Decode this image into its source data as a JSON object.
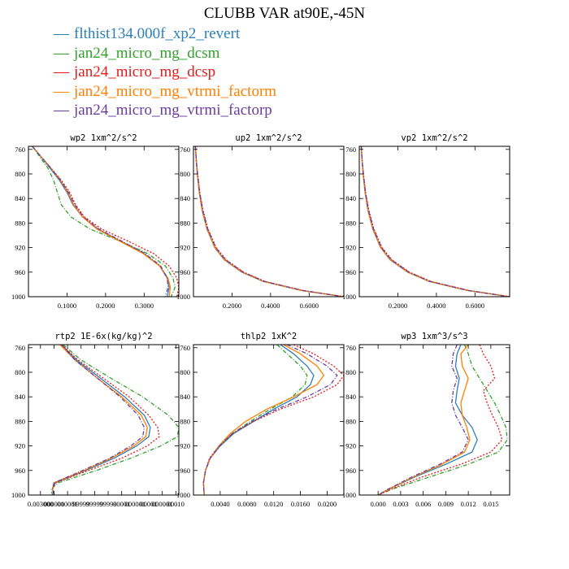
{
  "title": "CLUBB VAR at90E,-45N",
  "legend": [
    {
      "label": "flthist134.000f_xp2_revert",
      "color": "#2c7fb8",
      "dash": "solid"
    },
    {
      "label": "jan24_micro_mg_dcsm",
      "color": "#33a02c",
      "dash": "dashdot"
    },
    {
      "label": "jan24_micro_mg_dcsp",
      "color": "#e31a1c",
      "dash": "dotted"
    },
    {
      "label": "jan24_micro_mg_vtrmi_factorm",
      "color": "#ff7f00",
      "dash": "solid"
    },
    {
      "label": "jan24_micro_mg_vtrmi_factorp",
      "color": "#6a3d9a",
      "dash": "dashdot"
    }
  ],
  "chart_data": [
    {
      "type": "line",
      "title": "wp2   1xm^2/s^2",
      "xlim": [
        0.0,
        0.39
      ],
      "ylim": [
        1000,
        755
      ],
      "xticks": [
        0.1,
        0.2,
        0.3
      ],
      "xtick_labels": [
        "0.1000",
        "0.2000",
        "0.3000"
      ],
      "yticks": [
        760,
        800,
        840,
        880,
        920,
        960,
        1000
      ],
      "ytick_labels": [
        "760",
        "800",
        "840",
        "880",
        "920",
        "960",
        "1000"
      ],
      "y": [
        755,
        770,
        790,
        810,
        830,
        850,
        870,
        890,
        910,
        930,
        950,
        970,
        985,
        1000
      ],
      "series": [
        {
          "name": "flthist134.000f_xp2_revert",
          "x": [
            0.01,
            0.03,
            0.055,
            0.08,
            0.1,
            0.115,
            0.14,
            0.18,
            0.24,
            0.3,
            0.34,
            0.36,
            0.365,
            0.36
          ]
        },
        {
          "name": "jan24_micro_mg_dcsm",
          "x": [
            0.01,
            0.027,
            0.05,
            0.065,
            0.075,
            0.085,
            0.11,
            0.16,
            0.24,
            0.31,
            0.355,
            0.375,
            0.38,
            0.37
          ]
        },
        {
          "name": "jan24_micro_mg_dcsp",
          "x": [
            0.01,
            0.03,
            0.058,
            0.085,
            0.107,
            0.122,
            0.145,
            0.19,
            0.26,
            0.325,
            0.365,
            0.385,
            0.39,
            0.385
          ]
        },
        {
          "name": "jan24_micro_mg_vtrmi_factorm",
          "x": [
            0.01,
            0.03,
            0.057,
            0.082,
            0.102,
            0.117,
            0.14,
            0.178,
            0.238,
            0.298,
            0.34,
            0.362,
            0.368,
            0.365
          ]
        },
        {
          "name": "jan24_micro_mg_vtrmi_factorp",
          "x": [
            0.01,
            0.03,
            0.057,
            0.083,
            0.104,
            0.12,
            0.143,
            0.183,
            0.243,
            0.303,
            0.343,
            0.36,
            0.362,
            0.355
          ]
        }
      ]
    },
    {
      "type": "line",
      "title": "up2   1xm^2/s^2",
      "xlim": [
        0.0,
        0.78
      ],
      "ylim": [
        1000,
        755
      ],
      "xticks": [
        0.2,
        0.4,
        0.6
      ],
      "xtick_labels": [
        "0.2000",
        "0.4000",
        "0.6000"
      ],
      "yticks": [
        760,
        800,
        840,
        880,
        920,
        960,
        1000
      ],
      "ytick_labels": [
        "760",
        "800",
        "840",
        "880",
        "920",
        "960",
        "1000"
      ],
      "y": [
        755,
        780,
        800,
        830,
        860,
        890,
        920,
        940,
        960,
        975,
        990,
        1000
      ],
      "series": [
        {
          "name": "flthist134.000f_xp2_revert",
          "x": [
            0.01,
            0.015,
            0.02,
            0.03,
            0.045,
            0.07,
            0.11,
            0.16,
            0.25,
            0.36,
            0.56,
            0.78
          ]
        },
        {
          "name": "jan24_micro_mg_dcsm",
          "x": [
            0.01,
            0.015,
            0.021,
            0.031,
            0.047,
            0.073,
            0.113,
            0.165,
            0.255,
            0.365,
            0.565,
            0.78
          ]
        },
        {
          "name": "jan24_micro_mg_dcsp",
          "x": [
            0.01,
            0.015,
            0.022,
            0.033,
            0.05,
            0.076,
            0.118,
            0.17,
            0.26,
            0.37,
            0.57,
            0.78
          ]
        },
        {
          "name": "jan24_micro_mg_vtrmi_factorm",
          "x": [
            0.01,
            0.015,
            0.02,
            0.03,
            0.046,
            0.071,
            0.111,
            0.162,
            0.252,
            0.362,
            0.562,
            0.78
          ]
        },
        {
          "name": "jan24_micro_mg_vtrmi_factorp",
          "x": [
            0.01,
            0.015,
            0.021,
            0.032,
            0.048,
            0.074,
            0.115,
            0.167,
            0.257,
            0.367,
            0.567,
            0.78
          ]
        }
      ]
    },
    {
      "type": "line",
      "title": "vp2   1xm^2/s^2",
      "xlim": [
        0.0,
        0.78
      ],
      "ylim": [
        1000,
        755
      ],
      "xticks": [
        0.2,
        0.4,
        0.6
      ],
      "xtick_labels": [
        "0.2000",
        "0.4000",
        "0.6000"
      ],
      "yticks": [
        760,
        800,
        840,
        880,
        920,
        960,
        1000
      ],
      "ytick_labels": [
        "760",
        "800",
        "840",
        "880",
        "920",
        "960",
        "1000"
      ],
      "y": [
        755,
        780,
        800,
        830,
        860,
        890,
        920,
        940,
        960,
        975,
        990,
        1000
      ],
      "series": [
        {
          "name": "flthist134.000f_xp2_revert",
          "x": [
            0.01,
            0.015,
            0.02,
            0.03,
            0.045,
            0.07,
            0.11,
            0.16,
            0.25,
            0.36,
            0.56,
            0.78
          ]
        },
        {
          "name": "jan24_micro_mg_dcsm",
          "x": [
            0.01,
            0.015,
            0.021,
            0.031,
            0.047,
            0.073,
            0.113,
            0.165,
            0.255,
            0.365,
            0.565,
            0.78
          ]
        },
        {
          "name": "jan24_micro_mg_dcsp",
          "x": [
            0.01,
            0.015,
            0.022,
            0.033,
            0.05,
            0.076,
            0.118,
            0.17,
            0.26,
            0.37,
            0.57,
            0.78
          ]
        },
        {
          "name": "jan24_micro_mg_vtrmi_factorm",
          "x": [
            0.01,
            0.015,
            0.02,
            0.03,
            0.046,
            0.071,
            0.111,
            0.162,
            0.252,
            0.362,
            0.562,
            0.78
          ]
        },
        {
          "name": "jan24_micro_mg_vtrmi_factorp",
          "x": [
            0.01,
            0.015,
            0.021,
            0.032,
            0.048,
            0.074,
            0.115,
            0.167,
            0.257,
            0.367,
            0.567,
            0.78
          ]
        }
      ]
    },
    {
      "type": "line",
      "title": "rtp2   1E-6x(kg/kg)^2",
      "xlim": [
        0.0,
        1.0
      ],
      "ylim": [
        1000,
        755
      ],
      "xticks": [
        0.08,
        0.17,
        0.26,
        0.35,
        0.44,
        0.53,
        0.62,
        0.71,
        0.8,
        0.89,
        0.98
      ],
      "xtick_labels": [
        "0.003000",
        "000001",
        "000001",
        "99999",
        "99999",
        "99999",
        "00001",
        "000001",
        "00001",
        "000001",
        "00010"
      ],
      "yticks": [
        760,
        800,
        840,
        880,
        920,
        960,
        1000
      ],
      "ytick_labels": [
        "760",
        "800",
        "840",
        "880",
        "920",
        "960",
        "1000"
      ],
      "y": [
        755,
        780,
        810,
        840,
        870,
        890,
        905,
        920,
        940,
        960,
        980,
        990,
        1000
      ],
      "series": [
        {
          "name": "flthist134.000f_xp2_revert",
          "x": [
            0.22,
            0.32,
            0.48,
            0.64,
            0.77,
            0.81,
            0.8,
            0.72,
            0.57,
            0.38,
            0.18,
            0.16,
            0.17
          ]
        },
        {
          "name": "jan24_micro_mg_dcsm",
          "x": [
            0.23,
            0.35,
            0.55,
            0.76,
            0.93,
            1.0,
            0.99,
            0.88,
            0.68,
            0.45,
            0.2,
            0.15,
            0.16
          ]
        },
        {
          "name": "jan24_micro_mg_dcsp",
          "x": [
            0.22,
            0.33,
            0.5,
            0.67,
            0.8,
            0.86,
            0.87,
            0.79,
            0.62,
            0.4,
            0.18,
            0.16,
            0.17
          ]
        },
        {
          "name": "jan24_micro_mg_vtrmi_factorm",
          "x": [
            0.21,
            0.31,
            0.46,
            0.62,
            0.75,
            0.79,
            0.78,
            0.7,
            0.55,
            0.37,
            0.17,
            0.16,
            0.17
          ]
        },
        {
          "name": "jan24_micro_mg_vtrmi_factorp",
          "x": [
            0.22,
            0.31,
            0.46,
            0.61,
            0.73,
            0.77,
            0.76,
            0.68,
            0.54,
            0.36,
            0.17,
            0.16,
            0.17
          ]
        }
      ]
    },
    {
      "type": "line",
      "title": "thlp2   1xK^2",
      "xlim": [
        0.0,
        0.0225
      ],
      "ylim": [
        1000,
        755
      ],
      "xticks": [
        0.004,
        0.008,
        0.012,
        0.016,
        0.02
      ],
      "xtick_labels": [
        "0.0040",
        "0.0080",
        "0.0120",
        "0.0160",
        "0.0200"
      ],
      "yticks": [
        760,
        800,
        840,
        880,
        920,
        960,
        1000
      ],
      "ytick_labels": [
        "760",
        "800",
        "840",
        "880",
        "920",
        "960",
        "1000"
      ],
      "y": [
        755,
        770,
        790,
        805,
        820,
        840,
        860,
        880,
        900,
        920,
        940,
        960,
        980,
        1000
      ],
      "series": [
        {
          "name": "flthist134.000f_xp2_revert",
          "x": [
            0.013,
            0.015,
            0.017,
            0.018,
            0.0175,
            0.0155,
            0.012,
            0.009,
            0.006,
            0.004,
            0.0025,
            0.0018,
            0.0015,
            0.0016
          ]
        },
        {
          "name": "jan24_micro_mg_dcsm",
          "x": [
            0.0125,
            0.014,
            0.016,
            0.017,
            0.0167,
            0.0148,
            0.0115,
            0.0085,
            0.0058,
            0.0039,
            0.0025,
            0.0018,
            0.0015,
            0.0016
          ]
        },
        {
          "name": "jan24_micro_mg_dcsp",
          "x": [
            0.015,
            0.018,
            0.021,
            0.0225,
            0.0215,
            0.018,
            0.013,
            0.009,
            0.0058,
            0.0038,
            0.0024,
            0.0018,
            0.0015,
            0.0016
          ]
        },
        {
          "name": "jan24_micro_mg_vtrmi_factorm",
          "x": [
            0.0135,
            0.016,
            0.0185,
            0.0195,
            0.0185,
            0.015,
            0.011,
            0.0078,
            0.0055,
            0.0038,
            0.0025,
            0.0018,
            0.0015,
            0.0016
          ]
        },
        {
          "name": "jan24_micro_mg_vtrmi_factorp",
          "x": [
            0.014,
            0.017,
            0.02,
            0.0215,
            0.0205,
            0.017,
            0.0125,
            0.0088,
            0.0058,
            0.0039,
            0.0025,
            0.0018,
            0.0015,
            0.0016
          ]
        }
      ]
    },
    {
      "type": "line",
      "title": "wp3   1xm^3/s^3",
      "xlim": [
        -0.0025,
        0.0175
      ],
      "ylim": [
        1000,
        755
      ],
      "xticks": [
        0.0,
        0.003,
        0.006,
        0.009,
        0.012,
        0.015
      ],
      "xtick_labels": [
        "0.000",
        "0.003",
        "0.006",
        "0.009",
        "0.012",
        "0.015"
      ],
      "yticks": [
        760,
        800,
        840,
        880,
        920,
        960,
        1000
      ],
      "ytick_labels": [
        "760",
        "800",
        "840",
        "880",
        "920",
        "960",
        "1000"
      ],
      "y": [
        755,
        770,
        790,
        810,
        830,
        850,
        870,
        890,
        910,
        930,
        950,
        970,
        990,
        1000
      ],
      "series": [
        {
          "name": "flthist134.000f_xp2_revert",
          "x": [
            0.011,
            0.0105,
            0.0103,
            0.0108,
            0.0105,
            0.0103,
            0.0112,
            0.0125,
            0.0132,
            0.0125,
            0.009,
            0.005,
            0.0015,
            0.0
          ]
        },
        {
          "name": "jan24_micro_mg_dcsm",
          "x": [
            0.0115,
            0.012,
            0.0125,
            0.0135,
            0.0145,
            0.0155,
            0.0163,
            0.017,
            0.0172,
            0.016,
            0.012,
            0.007,
            0.002,
            0.0
          ]
        },
        {
          "name": "jan24_micro_mg_dcsp",
          "x": [
            0.0135,
            0.014,
            0.015,
            0.0155,
            0.014,
            0.0145,
            0.0152,
            0.016,
            0.0165,
            0.015,
            0.011,
            0.006,
            0.0018,
            0.0
          ]
        },
        {
          "name": "jan24_micro_mg_vtrmi_factorm",
          "x": [
            0.012,
            0.011,
            0.0112,
            0.012,
            0.0115,
            0.011,
            0.0112,
            0.0118,
            0.0122,
            0.0115,
            0.0085,
            0.0048,
            0.0015,
            0.0
          ]
        },
        {
          "name": "jan24_micro_mg_vtrmi_factorp",
          "x": [
            0.0105,
            0.01,
            0.0098,
            0.0105,
            0.01,
            0.0098,
            0.0103,
            0.0112,
            0.012,
            0.0112,
            0.0082,
            0.0046,
            0.0014,
            0.0
          ]
        }
      ]
    }
  ]
}
